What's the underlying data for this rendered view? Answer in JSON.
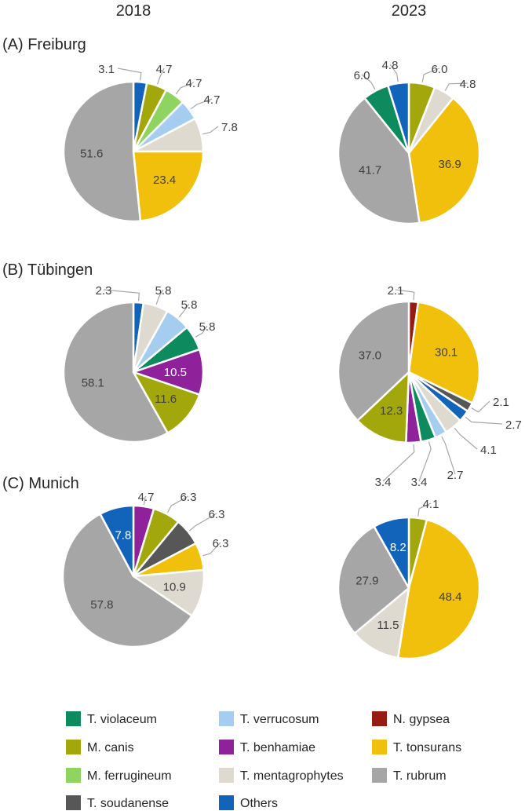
{
  "colors": {
    "T. violaceum": "#0e8a5f",
    "M. canis": "#a2a80c",
    "M. ferrugineum": "#8fd460",
    "T. soudanense": "#575757",
    "T. verrucosum": "#a5cdef",
    "T. benhamiae": "#8f219a",
    "T. mentagrophytes": "#dedad0",
    "Others": "#1264bb",
    "N. gypsea": "#961b12",
    "T. tonsurans": "#f0c00c",
    "T. rubrum": "#a6a6a6"
  },
  "legend": {
    "items": [
      "T. violaceum",
      "T. verrucosum",
      "N. gypsea",
      "M. canis",
      "T. benhamiae",
      "T. tonsurans",
      "M. ferrugineum",
      "T. mentagrophytes",
      "T. rubrum",
      "T. soudanense",
      "Others"
    ]
  },
  "chart_data": {
    "type": "pie",
    "title": "",
    "columns": [
      "2018",
      "2023"
    ],
    "rows": [
      {
        "title": "(A) Freiburg",
        "pies": [
          {
            "year": "2018",
            "slices": [
              {
                "name": "Others",
                "value": 3.1,
                "label": "3.1"
              },
              {
                "name": "M. canis",
                "value": 4.7,
                "label": "4.7"
              },
              {
                "name": "M. ferrugineum",
                "value": 4.7,
                "label": "4.7"
              },
              {
                "name": "T. verrucosum",
                "value": 4.7,
                "label": "4.7"
              },
              {
                "name": "T. mentagrophytes",
                "value": 7.8,
                "label": "7.8"
              },
              {
                "name": "T. tonsurans",
                "value": 23.4,
                "label": "23.4"
              },
              {
                "name": "T. rubrum",
                "value": 51.6,
                "label": "51.6"
              }
            ]
          },
          {
            "year": "2023",
            "slices": [
              {
                "name": "M. canis",
                "value": 6.0,
                "label": "6.0"
              },
              {
                "name": "T. mentagrophytes",
                "value": 4.8,
                "label": "4.8"
              },
              {
                "name": "T. tonsurans",
                "value": 36.9,
                "label": "36.9"
              },
              {
                "name": "T. rubrum",
                "value": 41.7,
                "label": "41.7"
              },
              {
                "name": "T. violaceum",
                "value": 6.0,
                "label": "6.0"
              },
              {
                "name": "Others",
                "value": 4.8,
                "label": "4.8"
              }
            ]
          }
        ]
      },
      {
        "title": "(B) Tübingen",
        "pies": [
          {
            "year": "2018",
            "slices": [
              {
                "name": "Others",
                "value": 2.3,
                "label": "2.3"
              },
              {
                "name": "T. mentagrophytes",
                "value": 5.8,
                "label": "5.8"
              },
              {
                "name": "T. verrucosum",
                "value": 5.8,
                "label": "5.8"
              },
              {
                "name": "T. violaceum",
                "value": 5.8,
                "label": "5.8"
              },
              {
                "name": "T. benhamiae",
                "value": 10.5,
                "label": "10.5"
              },
              {
                "name": "M. canis",
                "value": 11.6,
                "label": "11.6"
              },
              {
                "name": "T. rubrum",
                "value": 58.1,
                "label": "58.1"
              }
            ]
          },
          {
            "year": "2023",
            "slices": [
              {
                "name": "N. gypsea",
                "value": 2.1,
                "label": "2.1"
              },
              {
                "name": "T. tonsurans",
                "value": 30.1,
                "label": "30.1"
              },
              {
                "name": "T. soudanense",
                "value": 2.1,
                "label": "2.1"
              },
              {
                "name": "Others",
                "value": 2.7,
                "label": "2.7"
              },
              {
                "name": "T. mentagrophytes",
                "value": 4.1,
                "label": "4.1"
              },
              {
                "name": "T. verrucosum",
                "value": 2.7,
                "label": "2.7"
              },
              {
                "name": "T. violaceum",
                "value": 3.4,
                "label": "3.4"
              },
              {
                "name": "T. benhamiae",
                "value": 3.4,
                "label": "3.4"
              },
              {
                "name": "M. canis",
                "value": 12.3,
                "label": "12.3"
              },
              {
                "name": "T. rubrum",
                "value": 37.0,
                "label": "37.0"
              }
            ]
          }
        ]
      },
      {
        "title": "(C) Munich",
        "pies": [
          {
            "year": "2018",
            "slices": [
              {
                "name": "T. benhamiae",
                "value": 4.7,
                "label": "4.7"
              },
              {
                "name": "M. canis",
                "value": 6.3,
                "label": "6.3"
              },
              {
                "name": "T. soudanense",
                "value": 6.3,
                "label": "6.3"
              },
              {
                "name": "T. tonsurans",
                "value": 6.3,
                "label": "6.3"
              },
              {
                "name": "T. mentagrophytes",
                "value": 10.9,
                "label": "10.9"
              },
              {
                "name": "T. rubrum",
                "value": 57.8,
                "label": "57.8"
              },
              {
                "name": "Others",
                "value": 7.8,
                "label": "7.8"
              }
            ]
          },
          {
            "year": "2023",
            "slices": [
              {
                "name": "M. canis",
                "value": 4.1,
                "label": "4.1"
              },
              {
                "name": "T. tonsurans",
                "value": 48.4,
                "label": "48.4"
              },
              {
                "name": "T. mentagrophytes",
                "value": 11.5,
                "label": "11.5"
              },
              {
                "name": "T. rubrum",
                "value": 27.9,
                "label": "27.9"
              },
              {
                "name": "Others",
                "value": 8.2,
                "label": "8.2"
              }
            ]
          }
        ]
      }
    ]
  }
}
